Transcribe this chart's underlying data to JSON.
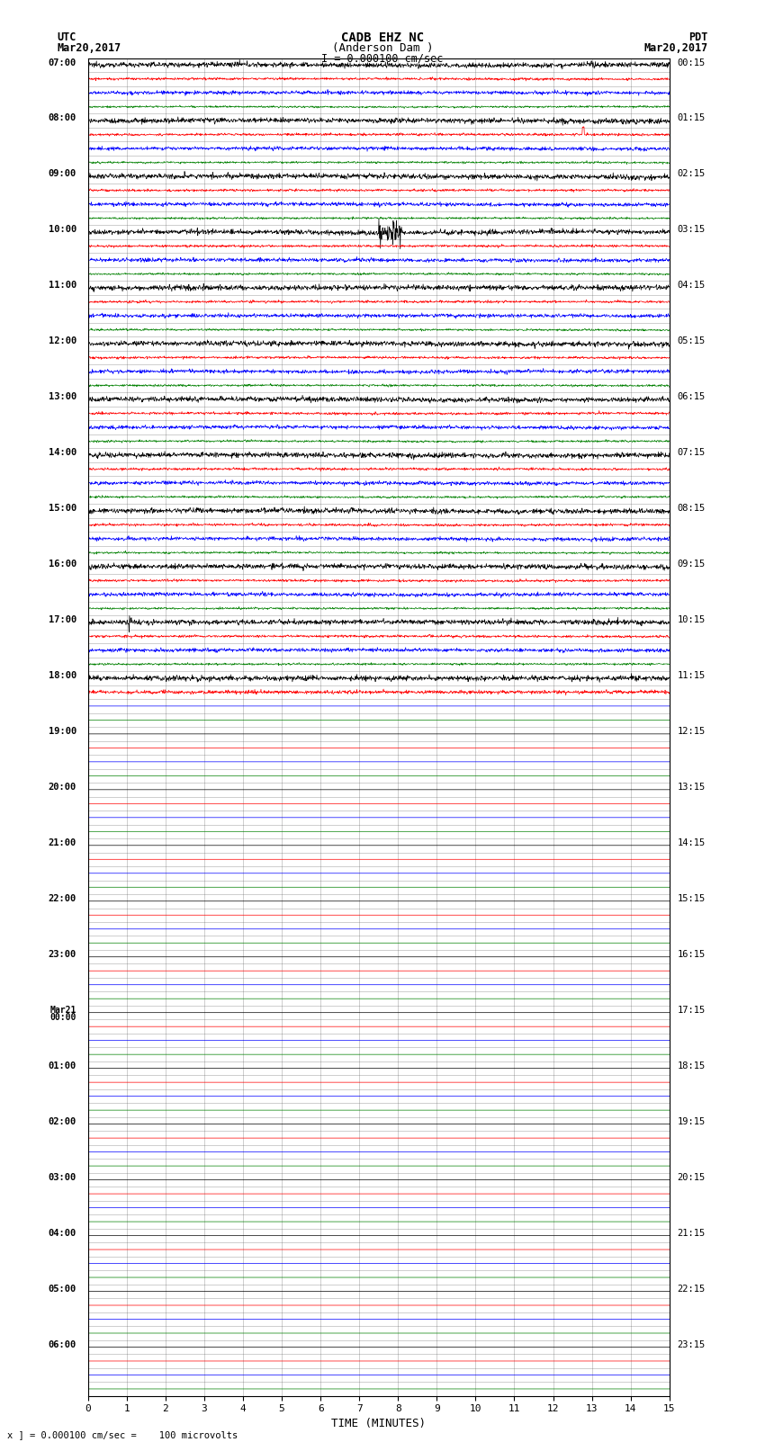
{
  "title_line1": "CADB EHZ NC",
  "title_line2": "(Anderson Dam )",
  "title_line3": "I = 0.000100 cm/sec",
  "left_label_line1": "UTC",
  "left_label_line2": "Mar20,2017",
  "right_label_line1": "PDT",
  "right_label_line2": "Mar20,2017",
  "bottom_note": "x ] = 0.000100 cm/sec =    100 microvolts",
  "xlabel": "TIME (MINUTES)",
  "bg_color": "#ffffff",
  "line_colors": [
    "black",
    "red",
    "blue",
    "green"
  ],
  "n_rows": 96,
  "x_min": 0,
  "x_max": 15,
  "x_ticks": [
    0,
    1,
    2,
    3,
    4,
    5,
    6,
    7,
    8,
    9,
    10,
    11,
    12,
    13,
    14,
    15
  ],
  "active_rows": 44,
  "left_times_hours": [
    "07:00",
    "08:00",
    "09:00",
    "10:00",
    "11:00",
    "12:00",
    "13:00",
    "14:00",
    "15:00",
    "16:00",
    "17:00",
    "18:00",
    "19:00",
    "20:00",
    "21:00",
    "22:00",
    "23:00",
    "Mar21\n00:00",
    "01:00",
    "02:00",
    "03:00",
    "04:00",
    "05:00",
    "06:00"
  ],
  "right_times_hours": [
    "00:15",
    "01:15",
    "02:15",
    "03:15",
    "04:15",
    "05:15",
    "06:15",
    "07:15",
    "08:15",
    "09:15",
    "10:15",
    "11:15",
    "12:15",
    "13:15",
    "14:15",
    "15:15",
    "16:15",
    "17:15",
    "18:15",
    "19:15",
    "20:15",
    "21:15",
    "22:15",
    "23:15"
  ],
  "noise_amp_black": 0.25,
  "noise_amp_red": 0.12,
  "noise_amp_blue": 0.18,
  "noise_amp_green": 0.1,
  "grid_color": "#555555",
  "grid_alpha": 0.5,
  "grid_lw": 0.4,
  "signal_lw": 0.5
}
